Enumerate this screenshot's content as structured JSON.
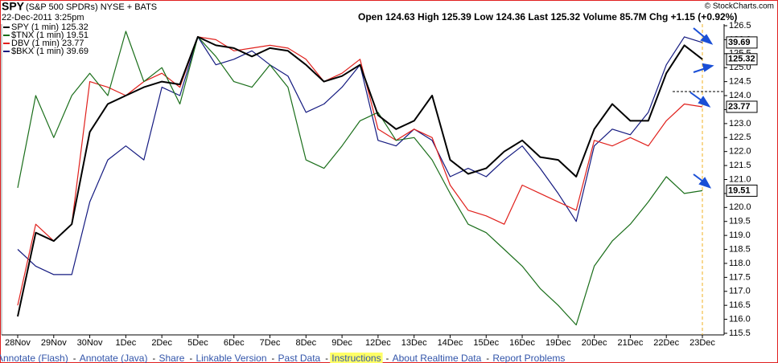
{
  "header": {
    "symbol": "SPY",
    "name": "(S&P 500 SPDRs) NYSE + BATS",
    "timestamp": "22-Dec-2011 3:25pm",
    "quote": "Open 124.63  High 125.39  Low 124.36  Last 125.32  Volume 85.7M  Chg +1.15 (+0.92%)",
    "copyright": "© StockCharts.com"
  },
  "links": [
    "Annotate (Flash)",
    "Annotate (Java)",
    "Share",
    "Linkable Version",
    "Past Data",
    "Instructions",
    "About Realtime Data",
    "Report Problems"
  ],
  "chart_data": {
    "type": "line",
    "categories": [
      "28Nov",
      null,
      "29Nov",
      null,
      "30Nov",
      null,
      "1Dec",
      null,
      "2Dec",
      null,
      "5Dec",
      null,
      "6Dec",
      null,
      "7Dec",
      null,
      "8Dec",
      null,
      "9Dec",
      null,
      "12Dec",
      null,
      "13Dec",
      null,
      "14Dec",
      null,
      "15Dec",
      null,
      "16Dec",
      null,
      "19Dec",
      null,
      "20Dec",
      null,
      "21Dec",
      null,
      "22Dec",
      null,
      "23Dec"
    ],
    "series": [
      {
        "name": "SPY (1 min) 125.32",
        "color": "#000000",
        "end_label": "125.32",
        "values": [
          116.1,
          119.1,
          118.8,
          119.4,
          122.7,
          123.7,
          124.0,
          124.3,
          124.5,
          124.4,
          126.1,
          125.8,
          125.7,
          125.4,
          125.7,
          125.6,
          125.1,
          124.5,
          124.7,
          125.1,
          123.3,
          122.8,
          123.1,
          124.0,
          121.7,
          121.2,
          121.4,
          122.0,
          122.4,
          121.8,
          121.7,
          121.1,
          122.8,
          123.7,
          123.1,
          123.1,
          124.8,
          125.8,
          125.3
        ]
      },
      {
        "name": "$TNX (1 min) 19.51",
        "color": "#1a6e1a",
        "end_label": "19.51",
        "values": [
          120.7,
          124.0,
          122.5,
          124.0,
          124.8,
          124.0,
          126.3,
          124.5,
          125.0,
          123.7,
          126.1,
          125.4,
          124.5,
          124.3,
          125.1,
          124.3,
          121.7,
          121.4,
          122.2,
          123.1,
          123.4,
          122.4,
          122.5,
          121.7,
          120.5,
          119.4,
          119.1,
          118.5,
          117.9,
          117.1,
          116.5,
          115.8,
          117.9,
          118.8,
          119.4,
          120.2,
          121.1,
          120.5,
          120.6
        ]
      },
      {
        "name": "DBV (1 min) 23.77",
        "color": "#e0201c",
        "end_label": "23.77",
        "values": [
          116.5,
          119.4,
          118.8,
          119.4,
          124.5,
          124.3,
          124.0,
          124.5,
          124.8,
          124.3,
          126.1,
          126.0,
          125.6,
          125.7,
          125.8,
          125.7,
          125.3,
          124.5,
          124.8,
          125.3,
          122.8,
          122.4,
          122.8,
          122.5,
          120.8,
          119.9,
          119.7,
          119.4,
          120.8,
          120.5,
          120.2,
          119.9,
          122.4,
          122.2,
          122.5,
          122.2,
          123.1,
          123.7,
          123.6
        ]
      },
      {
        "name": "$BKX (1 min) 39.69",
        "color": "#141a80",
        "end_label": "39.69",
        "values": [
          118.5,
          117.9,
          117.6,
          117.6,
          120.2,
          121.7,
          122.2,
          121.7,
          124.3,
          124.0,
          126.1,
          125.1,
          125.3,
          125.6,
          125.1,
          124.7,
          123.4,
          123.7,
          124.3,
          125.1,
          122.4,
          122.2,
          122.8,
          122.4,
          121.1,
          121.4,
          121.1,
          121.7,
          122.2,
          121.4,
          120.5,
          119.5,
          122.2,
          122.8,
          122.6,
          123.4,
          125.1,
          126.1,
          125.9
        ]
      }
    ],
    "ylim": [
      115.3,
      126.7
    ],
    "yticks": [
      115.5,
      {
        "value": 116,
        "label": "116.0"
      },
      116.5,
      {
        "value": 117,
        "label": "117.0"
      },
      117.5,
      {
        "value": 118,
        "label": "118.0"
      },
      118.5,
      {
        "value": 119,
        "label": "119.0"
      },
      119.5,
      {
        "value": 120,
        "label": "120.0"
      },
      120.5,
      {
        "value": 121,
        "label": "121.0"
      },
      121.5,
      {
        "value": 122,
        "label": "122.0"
      },
      122.5,
      {
        "value": 123,
        "label": "123.0"
      },
      123.5,
      {
        "value": 124,
        "label": "124.0"
      },
      124.5,
      {
        "value": 125,
        "label": "125.0"
      },
      125.5,
      {
        "value": 126,
        "label": "126.0"
      },
      126.5
    ]
  }
}
